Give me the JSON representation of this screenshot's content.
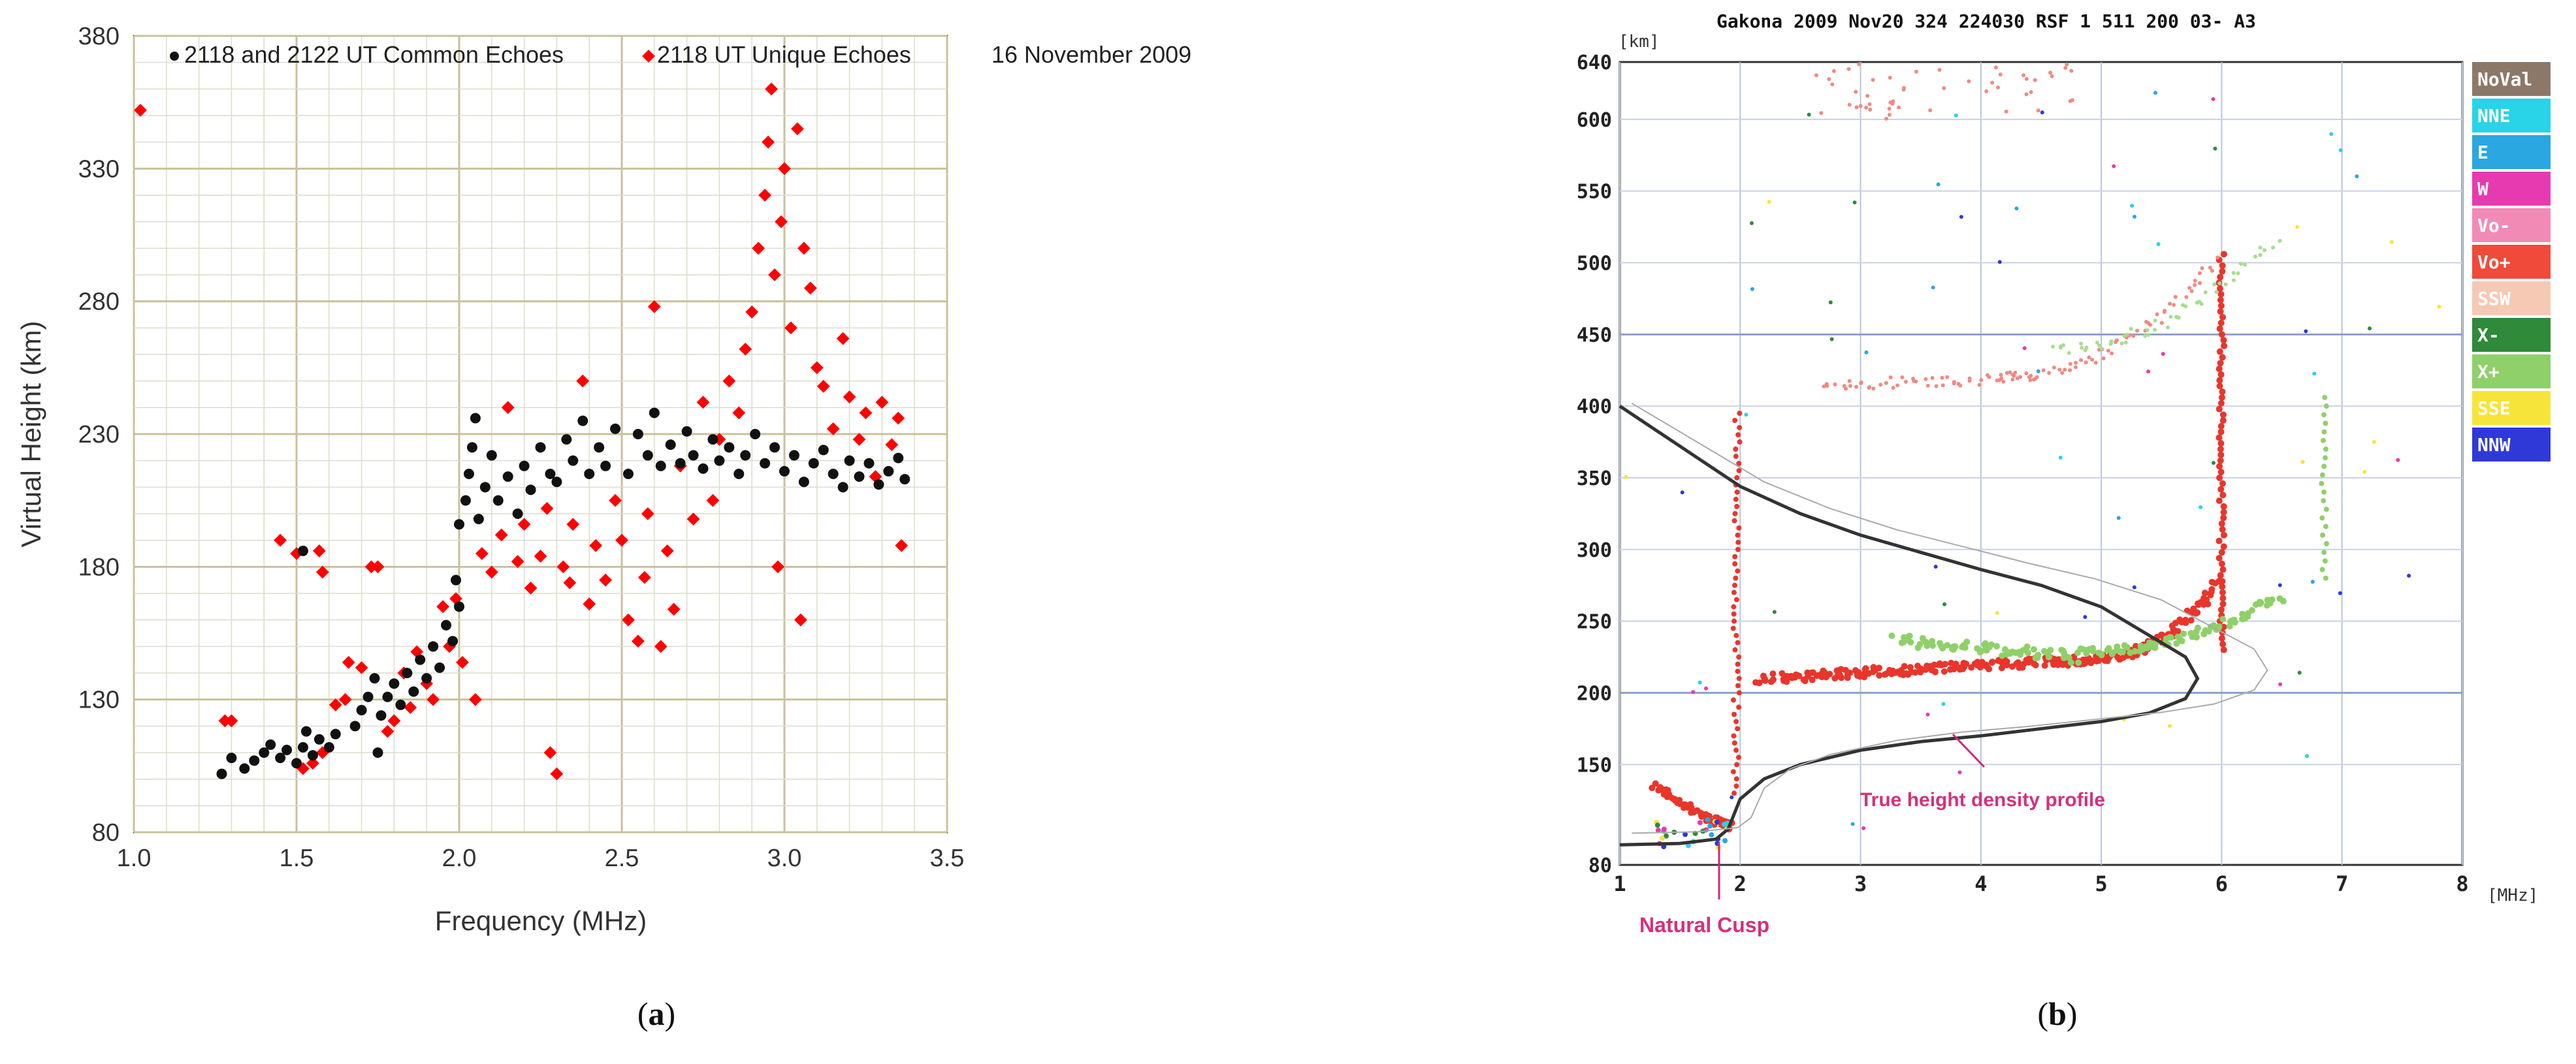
{
  "chart_data": [
    {
      "panel_label": "a",
      "type": "scatter",
      "title": "16 November 2009",
      "xlabel": "Frequency (MHz)",
      "ylabel": "Virtual Height (km)",
      "xlim": [
        1.0,
        3.5
      ],
      "ylim": [
        80,
        380
      ],
      "xticks": [
        "1.0",
        "1.5",
        "2.0",
        "2.5",
        "3.0",
        "3.5"
      ],
      "yticks": [
        "80",
        "130",
        "180",
        "230",
        "280",
        "330",
        "380"
      ],
      "legend": [
        "2118 and 2122 UT Common Echoes",
        "2118 UT Unique Echoes"
      ],
      "series": [
        {
          "name": "2118 and 2122 UT Common Echoes",
          "color": "#111111",
          "points": [
            [
              1.27,
              102
            ],
            [
              1.3,
              108
            ],
            [
              1.34,
              104
            ],
            [
              1.37,
              107
            ],
            [
              1.4,
              110
            ],
            [
              1.42,
              113
            ],
            [
              1.45,
              108
            ],
            [
              1.47,
              111
            ],
            [
              1.5,
              106
            ],
            [
              1.52,
              112
            ],
            [
              1.53,
              118
            ],
            [
              1.55,
              109
            ],
            [
              1.57,
              115
            ],
            [
              1.6,
              112
            ],
            [
              1.52,
              186
            ],
            [
              1.62,
              117
            ],
            [
              1.75,
              110
            ],
            [
              1.68,
              120
            ],
            [
              1.7,
              126
            ],
            [
              1.72,
              131
            ],
            [
              1.74,
              138
            ],
            [
              1.76,
              124
            ],
            [
              1.78,
              131
            ],
            [
              1.8,
              136
            ],
            [
              1.82,
              128
            ],
            [
              1.84,
              140
            ],
            [
              1.86,
              133
            ],
            [
              1.88,
              145
            ],
            [
              1.9,
              138
            ],
            [
              1.92,
              150
            ],
            [
              1.94,
              142
            ],
            [
              1.96,
              158
            ],
            [
              1.98,
              152
            ],
            [
              2.0,
              165
            ],
            [
              1.99,
              175
            ],
            [
              2.0,
              196
            ],
            [
              2.02,
              205
            ],
            [
              2.03,
              215
            ],
            [
              2.04,
              225
            ],
            [
              2.05,
              236
            ],
            [
              2.06,
              198
            ],
            [
              2.08,
              210
            ],
            [
              2.1,
              222
            ],
            [
              2.12,
              205
            ],
            [
              2.15,
              214
            ],
            [
              2.18,
              200
            ],
            [
              2.2,
              218
            ],
            [
              2.22,
              209
            ],
            [
              2.25,
              225
            ],
            [
              2.28,
              215
            ],
            [
              2.3,
              212
            ],
            [
              2.33,
              228
            ],
            [
              2.35,
              220
            ],
            [
              2.38,
              235
            ],
            [
              2.4,
              215
            ],
            [
              2.43,
              225
            ],
            [
              2.45,
              218
            ],
            [
              2.48,
              232
            ],
            [
              2.52,
              215
            ],
            [
              2.55,
              230
            ],
            [
              2.58,
              222
            ],
            [
              2.6,
              238
            ],
            [
              2.62,
              218
            ],
            [
              2.65,
              226
            ],
            [
              2.68,
              219
            ],
            [
              2.7,
              231
            ],
            [
              2.72,
              222
            ],
            [
              2.75,
              217
            ],
            [
              2.78,
              228
            ],
            [
              2.8,
              220
            ],
            [
              2.83,
              225
            ],
            [
              2.86,
              215
            ],
            [
              2.88,
              222
            ],
            [
              2.91,
              230
            ],
            [
              2.94,
              219
            ],
            [
              2.97,
              225
            ],
            [
              3.0,
              216
            ],
            [
              3.03,
              222
            ],
            [
              3.06,
              212
            ],
            [
              3.09,
              219
            ],
            [
              3.12,
              224
            ],
            [
              3.15,
              215
            ],
            [
              3.18,
              210
            ],
            [
              3.2,
              220
            ],
            [
              3.23,
              214
            ],
            [
              3.26,
              219
            ],
            [
              3.29,
              211
            ],
            [
              3.32,
              216
            ],
            [
              3.35,
              221
            ],
            [
              3.37,
              213
            ]
          ]
        },
        {
          "name": "2118 UT Unique Echoes",
          "color": "#ff0000",
          "points": [
            [
              1.02,
              352
            ],
            [
              1.28,
              122
            ],
            [
              1.3,
              122
            ],
            [
              1.45,
              190
            ],
            [
              1.5,
              185
            ],
            [
              1.57,
              186
            ],
            [
              1.58,
              178
            ],
            [
              1.52,
              104
            ],
            [
              1.55,
              106
            ],
            [
              1.58,
              110
            ],
            [
              1.62,
              128
            ],
            [
              1.65,
              130
            ],
            [
              1.66,
              144
            ],
            [
              1.7,
              142
            ],
            [
              1.73,
              180
            ],
            [
              1.75,
              180
            ],
            [
              1.78,
              118
            ],
            [
              1.8,
              122
            ],
            [
              1.83,
              140
            ],
            [
              1.85,
              127
            ],
            [
              1.87,
              148
            ],
            [
              1.9,
              136
            ],
            [
              1.92,
              130
            ],
            [
              1.95,
              165
            ],
            [
              1.97,
              150
            ],
            [
              1.99,
              168
            ],
            [
              2.01,
              144
            ],
            [
              2.05,
              130
            ],
            [
              2.07,
              185
            ],
            [
              2.1,
              178
            ],
            [
              2.13,
              192
            ],
            [
              2.15,
              240
            ],
            [
              2.18,
              182
            ],
            [
              2.2,
              196
            ],
            [
              2.22,
              172
            ],
            [
              2.25,
              184
            ],
            [
              2.27,
              202
            ],
            [
              2.28,
              110
            ],
            [
              2.3,
              102
            ],
            [
              2.32,
              180
            ],
            [
              2.34,
              174
            ],
            [
              2.35,
              196
            ],
            [
              2.38,
              250
            ],
            [
              2.4,
              166
            ],
            [
              2.42,
              188
            ],
            [
              2.45,
              175
            ],
            [
              2.48,
              205
            ],
            [
              2.5,
              190
            ],
            [
              2.52,
              160
            ],
            [
              2.55,
              152
            ],
            [
              2.57,
              176
            ],
            [
              2.58,
              200
            ],
            [
              2.6,
              278
            ],
            [
              2.62,
              150
            ],
            [
              2.64,
              186
            ],
            [
              2.66,
              164
            ],
            [
              2.68,
              218
            ],
            [
              2.72,
              198
            ],
            [
              2.75,
              242
            ],
            [
              2.78,
              205
            ],
            [
              2.8,
              228
            ],
            [
              2.83,
              250
            ],
            [
              2.86,
              238
            ],
            [
              2.88,
              262
            ],
            [
              2.9,
              276
            ],
            [
              2.92,
              300
            ],
            [
              2.94,
              320
            ],
            [
              2.95,
              340
            ],
            [
              2.96,
              360
            ],
            [
              2.97,
              290
            ],
            [
              2.99,
              310
            ],
            [
              3.0,
              330
            ],
            [
              3.02,
              270
            ],
            [
              3.04,
              345
            ],
            [
              3.06,
              300
            ],
            [
              3.08,
              285
            ],
            [
              3.1,
              255
            ],
            [
              3.12,
              248
            ],
            [
              3.15,
              232
            ],
            [
              3.18,
              266
            ],
            [
              3.2,
              244
            ],
            [
              3.23,
              228
            ],
            [
              3.25,
              238
            ],
            [
              3.28,
              214
            ],
            [
              3.3,
              242
            ],
            [
              3.33,
              226
            ],
            [
              3.35,
              236
            ],
            [
              3.36,
              188
            ],
            [
              3.05,
              160
            ],
            [
              2.98,
              180
            ]
          ]
        }
      ]
    },
    {
      "panel_label": "b",
      "type": "scatter",
      "title": "Gakona 2009 Nov20 324 224030 RSF   1 511 200 03- A3",
      "xlabel": "[MHz]",
      "ylabel": "[km]",
      "xlim": [
        1,
        8
      ],
      "ylim": [
        80,
        640
      ],
      "xticks": [
        "1",
        "2",
        "3",
        "4",
        "5",
        "6",
        "7",
        "8"
      ],
      "yticks": [
        "80",
        "150",
        "200",
        "250",
        "300",
        "350",
        "400",
        "450",
        "500",
        "550",
        "600",
        "640"
      ],
      "legend": [
        {
          "label": "NoVal",
          "color": "#8c7868"
        },
        {
          "label": "NNE",
          "color": "#29d3e8"
        },
        {
          "label": "E",
          "color": "#2aa6e0"
        },
        {
          "label": "W",
          "color": "#e73ab0"
        },
        {
          "label": "Vo-",
          "color": "#f28ab6"
        },
        {
          "label": "Vo+",
          "color": "#f04a3a"
        },
        {
          "label": "SSW",
          "color": "#f5c9b4"
        },
        {
          "label": "X-",
          "color": "#2f8a3a"
        },
        {
          "label": "X+",
          "color": "#8fd06a"
        },
        {
          "label": "SSE",
          "color": "#f7e43a"
        },
        {
          "label": "NNW",
          "color": "#2f39d8"
        }
      ],
      "profile_curve": [
        [
          1.0,
          400
        ],
        [
          1.5,
          372
        ],
        [
          2.0,
          344
        ],
        [
          2.5,
          325
        ],
        [
          3.0,
          310
        ],
        [
          3.5,
          298
        ],
        [
          4.0,
          286
        ],
        [
          4.5,
          275
        ],
        [
          5.0,
          260
        ],
        [
          5.4,
          240
        ],
        [
          5.7,
          225
        ],
        [
          5.8,
          210
        ],
        [
          5.7,
          196
        ],
        [
          5.4,
          186
        ],
        [
          5.0,
          180
        ],
        [
          4.5,
          175
        ],
        [
          4.0,
          170
        ],
        [
          3.5,
          166
        ],
        [
          3.0,
          160
        ],
        [
          2.5,
          150
        ],
        [
          2.2,
          140
        ],
        [
          2.0,
          126
        ],
        [
          1.9,
          105
        ],
        [
          1.8,
          98
        ],
        [
          1.5,
          95
        ],
        [
          1.0,
          94
        ]
      ],
      "annotations": [
        "True height density profile",
        "Natural Cusp"
      ]
    }
  ],
  "captions": {
    "a": "a",
    "b": "b"
  }
}
